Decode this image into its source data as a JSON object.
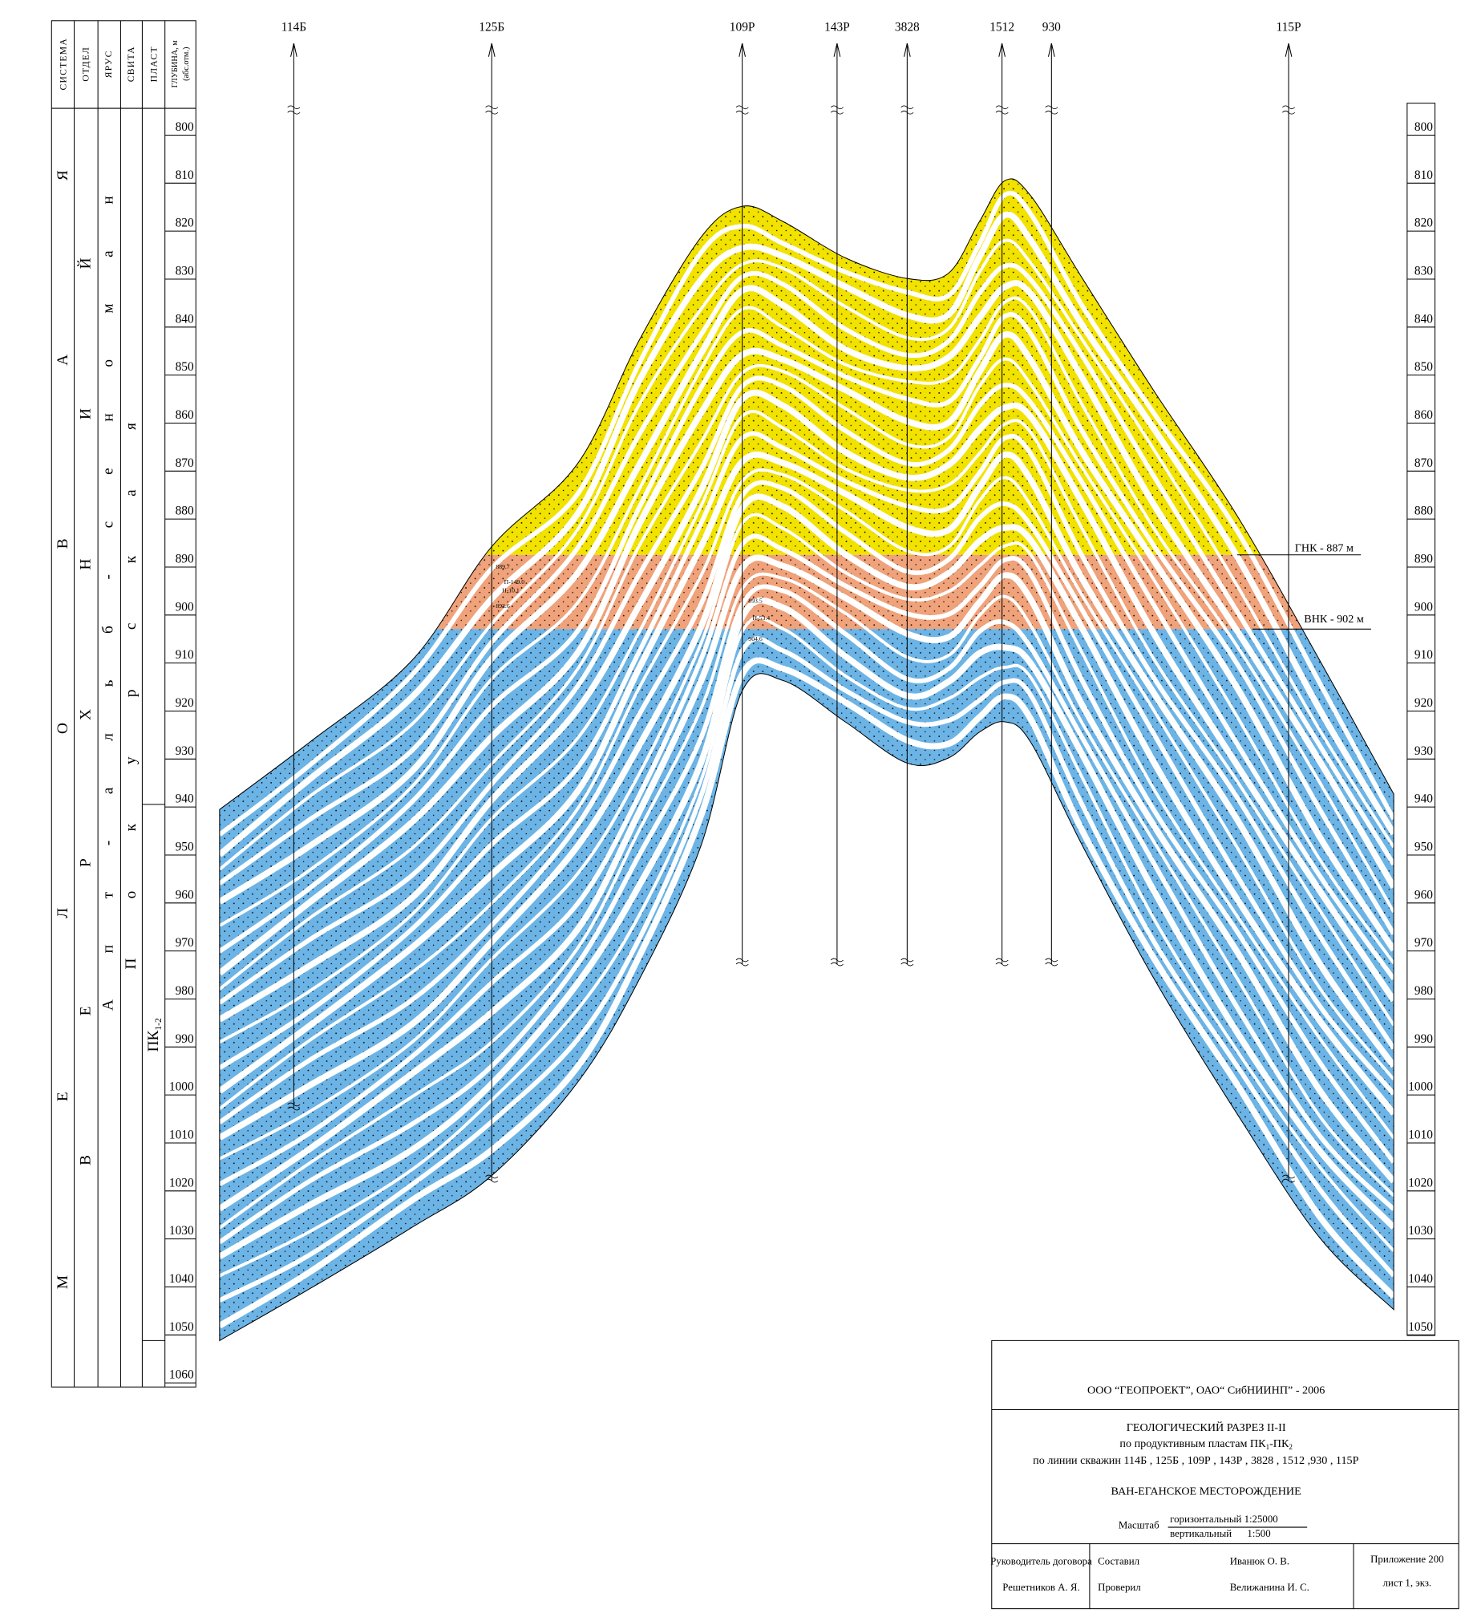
{
  "wells": [
    "114Б",
    "125Б",
    "109Р",
    "143Р",
    "3828",
    "1512",
    "930",
    "115Р"
  ],
  "stratigraphy": {
    "headers": {
      "system": "СИСТЕМА",
      "division": "ОТДЕЛ",
      "stage": "ЯРУС",
      "suite": "СВИТА",
      "layer": "ПЛАСТ",
      "depth": "ГЛУБИНА, м",
      "depth_note": "(абс.отм.)"
    },
    "system": "МЕЛОВАЯ",
    "division": "ВЕРХНИЙ",
    "stage": "Апт-альб-сеноман",
    "suite": "Покурская",
    "layer": {
      "name": "ПК",
      "index": "1-2"
    }
  },
  "depth_scale": {
    "left_ticks": [
      800,
      810,
      820,
      830,
      840,
      850,
      860,
      870,
      880,
      890,
      900,
      910,
      920,
      930,
      940,
      950,
      960,
      970,
      980,
      990,
      1000,
      1010,
      1020,
      1030,
      1040,
      1050,
      1060
    ],
    "right_ticks": [
      800,
      810,
      820,
      830,
      840,
      850,
      860,
      870,
      880,
      890,
      900,
      910,
      920,
      930,
      940,
      950,
      960,
      970,
      980,
      990,
      1000,
      1010,
      1020,
      1030,
      1040,
      1050
    ]
  },
  "contacts": {
    "gas_oil": "ГНК - 887 м",
    "oil_water": "ВНК - 902 м"
  },
  "well_notes": {
    "well_125": [
      "889.7",
      "П-149.0",
      "Н-10.1",
      "892.6"
    ],
    "well_109": [
      "893.5",
      "Н-53.4",
      "904.6"
    ]
  },
  "title_block": {
    "organization": "ООО “ГЕОПРОЕКТ”, ОАО“ СибНИИНП” - 2006",
    "title": "ГЕОЛОГИЧЕСКИЙ РАЗРЕЗ II-II",
    "subtitle": {
      "prefix": "по продуктивным пластам ПК",
      "index1": "1",
      "middle": "-ПК",
      "index2": "2"
    },
    "line": "по линии скважин 114Б , 125Б , 109Р , 143Р , 3828 , 1512 ,930 , 115Р",
    "field": "ВАН-ЕГАНСКОЕ МЕСТОРОЖДЕНИЕ",
    "scale_label": "Масштаб",
    "scale_horizontal": "горизонтальный 1:25000",
    "scale_vertical": "вертикальный      1:500",
    "manager_role": "Руководитель договора",
    "manager_name": "Решетников А. Я.",
    "compiled": "Составил",
    "checked": "Проверил",
    "compiled_name": "Иванюк О. В.",
    "checked_name": "Велижанина И. С.",
    "appendix": "Приложение 200",
    "sheet": "лист 1, экз."
  }
}
